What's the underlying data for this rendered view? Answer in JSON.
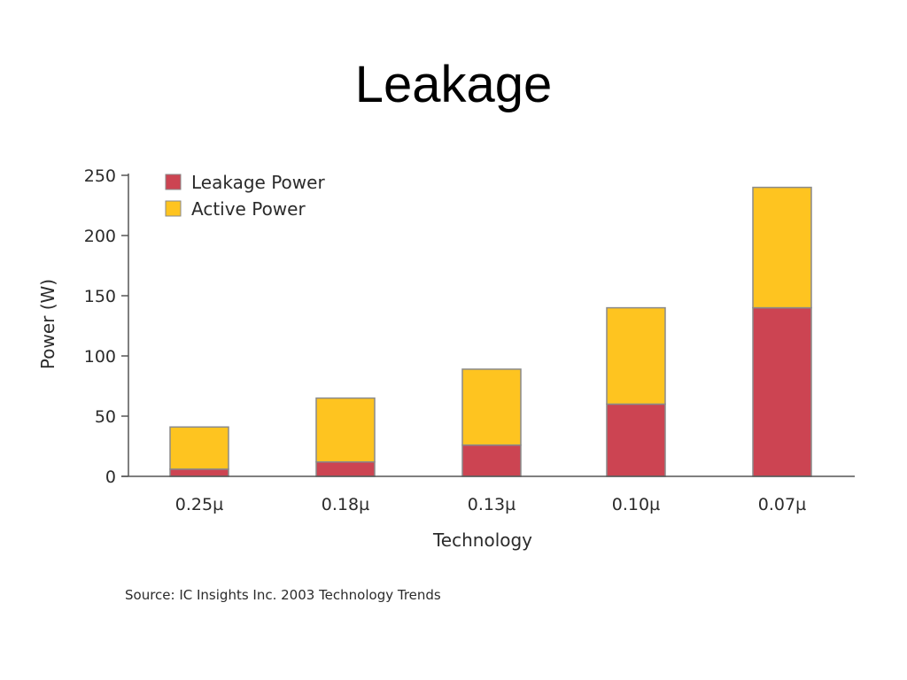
{
  "slide": {
    "title": "Leakage"
  },
  "colors": {
    "leakage": "#CC4452",
    "active": "#FEC420",
    "bar_edge": "#8a8a8a",
    "axis": "#555555"
  },
  "chart_data": {
    "type": "bar",
    "stacked": true,
    "categories": [
      "0.25µ",
      "0.18µ",
      "0.13µ",
      "0.10µ",
      "0.07µ"
    ],
    "series": [
      {
        "name": "Leakage Power",
        "values": [
          6,
          12,
          26,
          60,
          140
        ]
      },
      {
        "name": "Active Power",
        "values": [
          35,
          53,
          63,
          80,
          100
        ]
      }
    ],
    "xlabel": "Technology",
    "ylabel": "Power (W)",
    "ylim": [
      0,
      250
    ],
    "yticks": [
      0,
      50,
      100,
      150,
      200,
      250
    ],
    "legend": "top-left",
    "grid": false,
    "source": "Source:  IC Insights Inc. 2003 Technology Trends"
  }
}
